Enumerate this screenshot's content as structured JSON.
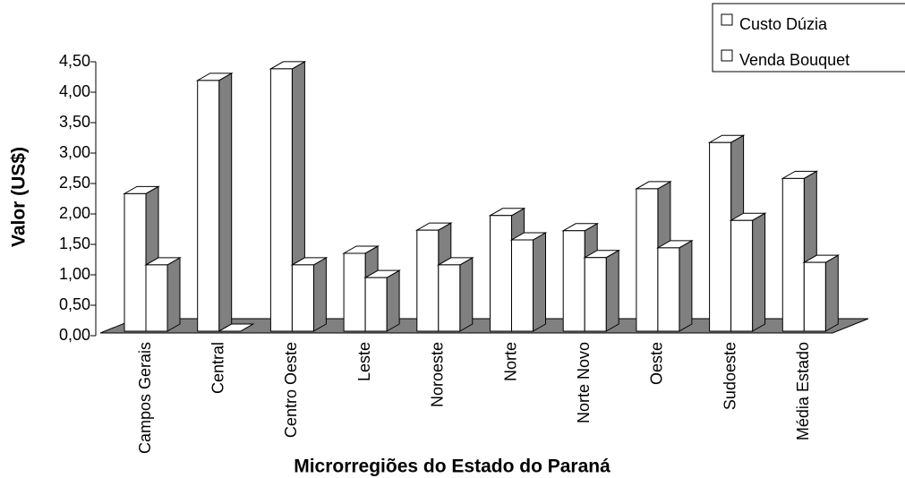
{
  "chart_data": {
    "type": "bar3d",
    "x_label": "Microrregiões do Estado do Paraná",
    "y_label": "Valor (US$)",
    "categories": [
      "Campos Gerais",
      "Central",
      "Centro Oeste",
      "Leste",
      "Noroeste",
      "Norte",
      "Norte Novo",
      "Oeste",
      "Sudoeste",
      "Média Estado"
    ],
    "series": [
      {
        "name": "Custo Dúzia",
        "color": "#ffffff",
        "values": [
          2.26,
          4.12,
          4.31,
          1.28,
          1.66,
          1.9,
          1.65,
          2.34,
          3.1,
          2.51
        ]
      },
      {
        "name": "Venda Bouquet",
        "color": "#ffffff",
        "values": [
          1.09,
          0,
          1.09,
          0.88,
          1.09,
          1.5,
          1.21,
          1.37,
          1.82,
          1.13
        ]
      }
    ],
    "ylim": [
      0,
      4.5
    ],
    "yticks": [
      {
        "value": 0,
        "label": "0,00"
      },
      {
        "value": 0.5,
        "label": "0,50"
      },
      {
        "value": 1,
        "label": "1,00"
      },
      {
        "value": 1.5,
        "label": "1,50"
      },
      {
        "value": 2,
        "label": "2,00"
      },
      {
        "value": 2.5,
        "label": "2,50"
      },
      {
        "value": 3,
        "label": "3,00"
      },
      {
        "value": 3.5,
        "label": "3,50"
      },
      {
        "value": 4,
        "label": "4,00"
      },
      {
        "value": 4.5,
        "label": "4,50"
      }
    ],
    "legend": "top-right"
  }
}
